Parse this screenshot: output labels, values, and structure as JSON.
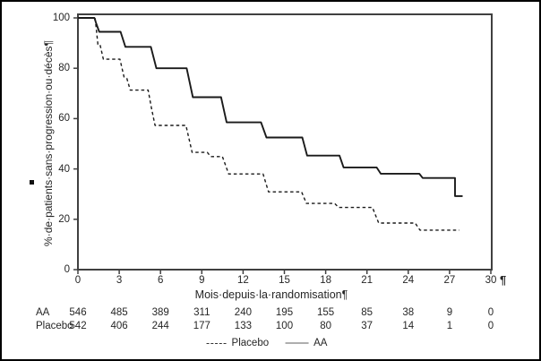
{
  "figure": {
    "y_axis_label": "%·de·patients·sans·progression·ou·décès¶",
    "x_axis_label": "Mois·depuis·la·randomisation¶",
    "pilcrow_after_x_axis": "¶"
  },
  "chart_data": {
    "type": "line",
    "subtype": "kaplan-meier-step-curves",
    "title": "",
    "xlabel": "Mois depuis la randomisation",
    "ylabel": "% de patients sans progression ou décès",
    "xlim": [
      0,
      30
    ],
    "ylim": [
      0,
      100
    ],
    "x_ticks": [
      0,
      3,
      6,
      9,
      12,
      15,
      18,
      21,
      24,
      27,
      30
    ],
    "y_ticks": [
      0,
      20,
      40,
      60,
      80,
      100
    ],
    "grid": false,
    "legend_position": "bottom",
    "series": [
      {
        "name": "AA",
        "style": "solid",
        "color": "#1a1a1a",
        "points": [
          [
            0,
            100
          ],
          [
            1.2,
            100
          ],
          [
            1.35,
            97.5
          ],
          [
            1.55,
            94.5
          ],
          [
            3.1,
            94.5
          ],
          [
            3.45,
            88.5
          ],
          [
            5.3,
            88.5
          ],
          [
            5.7,
            80
          ],
          [
            7.9,
            80
          ],
          [
            8.35,
            68.5
          ],
          [
            10.4,
            68.5
          ],
          [
            10.8,
            58.5
          ],
          [
            13.3,
            58.5
          ],
          [
            13.7,
            52.5
          ],
          [
            16.3,
            52.5
          ],
          [
            16.65,
            45.3
          ],
          [
            19.0,
            45.3
          ],
          [
            19.3,
            40.6
          ],
          [
            21.7,
            40.6
          ],
          [
            22.0,
            38.1
          ],
          [
            24.8,
            38.1
          ],
          [
            25.05,
            36.4
          ],
          [
            27.4,
            36.4
          ],
          [
            27.4,
            29.2
          ],
          [
            27.95,
            29.2
          ]
        ]
      },
      {
        "name": "Placebo",
        "style": "dashed",
        "color": "#1a1a1a",
        "points": [
          [
            0,
            100
          ],
          [
            1.25,
            100
          ],
          [
            1.45,
            89.5
          ],
          [
            1.6,
            89.5
          ],
          [
            1.85,
            83.6
          ],
          [
            3.05,
            83.6
          ],
          [
            3.35,
            76.5
          ],
          [
            3.55,
            76
          ],
          [
            3.8,
            71.3
          ],
          [
            5.1,
            71.3
          ],
          [
            5.35,
            64
          ],
          [
            5.6,
            57.3
          ],
          [
            7.85,
            57.3
          ],
          [
            8.3,
            46.6
          ],
          [
            9.4,
            46.6
          ],
          [
            9.65,
            44.9
          ],
          [
            10.5,
            44.9
          ],
          [
            10.95,
            38
          ],
          [
            13.45,
            38
          ],
          [
            13.85,
            30.9
          ],
          [
            16.25,
            30.9
          ],
          [
            16.6,
            26.3
          ],
          [
            18.65,
            26.3
          ],
          [
            18.95,
            24.7
          ],
          [
            21.4,
            24.7
          ],
          [
            21.85,
            18.5
          ],
          [
            24.5,
            18.5
          ],
          [
            24.85,
            15.7
          ],
          [
            27.7,
            15.7
          ]
        ]
      }
    ],
    "risk_table": {
      "rows": [
        {
          "label": "AA",
          "values": [
            "546",
            "485",
            "389",
            "311",
            "240",
            "195",
            "155",
            "85",
            "38",
            "9",
            "0"
          ]
        },
        {
          "label": "Placebo",
          "values": [
            "542",
            "406",
            "244",
            "177",
            "133",
            "100",
            "80",
            "37",
            "14",
            "1",
            "0"
          ]
        }
      ]
    },
    "legend": [
      {
        "label": "Placebo",
        "style": "dashed"
      },
      {
        "label": "AA",
        "style": "solid"
      }
    ],
    "axis_color": "#404040",
    "curve_color": "#1a1a1a"
  }
}
